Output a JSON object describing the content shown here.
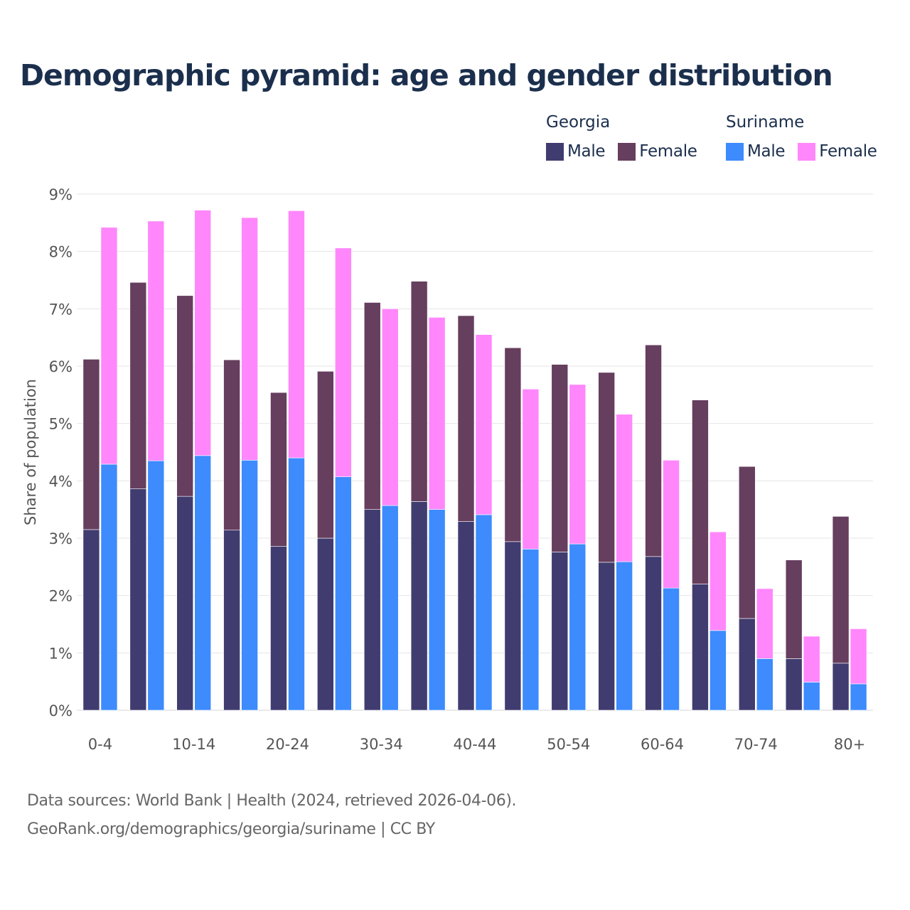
{
  "title": "Demographic pyramid: age and gender distribution",
  "legend": {
    "groups": [
      {
        "title": "Georgia",
        "items": [
          {
            "label": "Male",
            "color": "#403c70"
          },
          {
            "label": "Female",
            "color": "#663e5e"
          }
        ]
      },
      {
        "title": "Suriname",
        "items": [
          {
            "label": "Male",
            "color": "#3d8bfd"
          },
          {
            "label": "Female",
            "color": "#ff87fb"
          }
        ]
      }
    ]
  },
  "source": {
    "line1": "Data sources: World Bank | Health (2024, retrieved 2026-04-06).",
    "line2": "GeoRank.org/demographics/georgia/suriname | CC BY"
  },
  "chart_data": {
    "type": "bar",
    "stacked": true,
    "grouped": true,
    "title": "Demographic pyramid: age and gender distribution",
    "ylabel": "Share of population",
    "xlabel": "",
    "ylim": [
      0,
      9
    ],
    "yticks": [
      0,
      1,
      2,
      3,
      4,
      5,
      6,
      7,
      8,
      9
    ],
    "ytick_labels": [
      "0%",
      "1%",
      "2%",
      "3%",
      "4%",
      "5%",
      "6%",
      "7%",
      "8%",
      "9%"
    ],
    "categories": [
      "0-4",
      "5-9",
      "10-14",
      "15-19",
      "20-24",
      "25-29",
      "30-34",
      "35-39",
      "40-44",
      "45-49",
      "50-54",
      "55-59",
      "60-64",
      "65-69",
      "70-74",
      "75-79",
      "80+"
    ],
    "visible_tick_labels": [
      "0-4",
      "10-14",
      "20-24",
      "30-34",
      "40-44",
      "50-54",
      "60-64",
      "70-74",
      "80+"
    ],
    "series": [
      {
        "name": "Male",
        "group": "Georgia",
        "color": "#403c70",
        "values": [
          3.15,
          3.86,
          3.73,
          3.14,
          2.86,
          3.0,
          3.5,
          3.64,
          3.29,
          2.94,
          2.76,
          2.58,
          2.68,
          2.2,
          1.6,
          0.9,
          0.82
        ]
      },
      {
        "name": "Female",
        "group": "Georgia",
        "color": "#663e5e",
        "values": [
          2.97,
          3.6,
          3.5,
          2.97,
          2.68,
          2.91,
          3.61,
          3.84,
          3.59,
          3.38,
          3.27,
          3.31,
          3.69,
          3.21,
          2.65,
          1.72,
          2.56
        ]
      },
      {
        "name": "Male",
        "group": "Suriname",
        "color": "#3d8bfd",
        "values": [
          4.29,
          4.35,
          4.44,
          4.36,
          4.4,
          4.07,
          3.57,
          3.5,
          3.41,
          2.81,
          2.9,
          2.59,
          2.13,
          1.39,
          0.9,
          0.49,
          0.46
        ]
      },
      {
        "name": "Female",
        "group": "Suriname",
        "color": "#ff87fb",
        "values": [
          4.13,
          4.18,
          4.28,
          4.23,
          4.31,
          3.99,
          3.43,
          3.35,
          3.14,
          2.79,
          2.78,
          2.57,
          2.23,
          1.72,
          1.22,
          0.8,
          0.96
        ]
      }
    ],
    "grid": true,
    "legend_position": "top-right"
  }
}
